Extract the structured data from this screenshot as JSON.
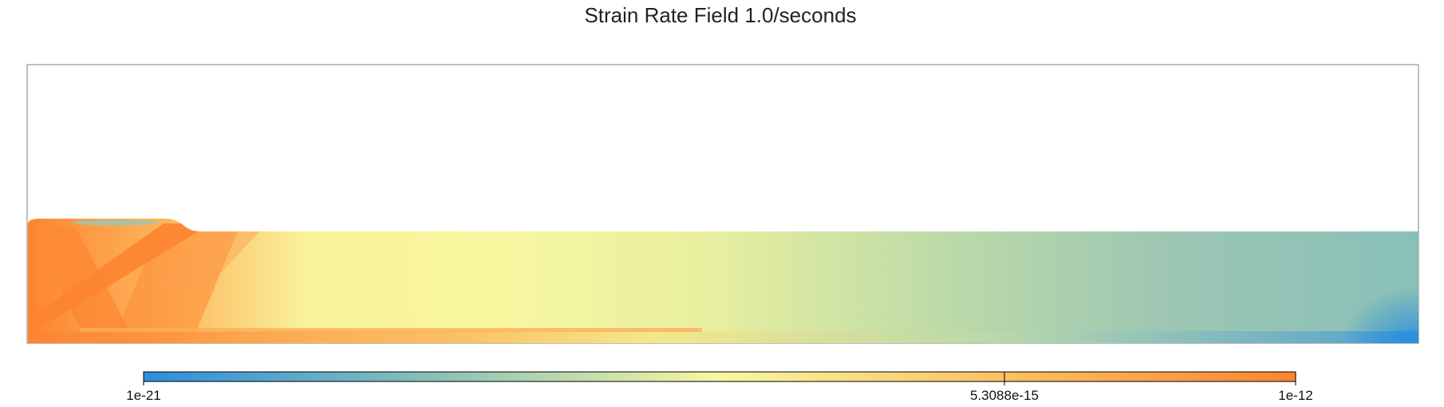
{
  "chart_data": {
    "type": "heatmap",
    "title": "Strain Rate Field 1.0/seconds",
    "xlabel": "",
    "ylabel": "",
    "grid": false,
    "colorbar": {
      "placement": "bottom",
      "scale": "log",
      "range": [
        1e-21,
        1e-12
      ],
      "ticks": [
        {
          "value": 1e-21,
          "label": "1e-21"
        },
        {
          "value": 5.3088e-15,
          "label": "5.3088e-15"
        },
        {
          "value": 1e-12,
          "label": "1e-12"
        }
      ],
      "colormap": [
        {
          "at": 0.0,
          "color": "#2b8fdd"
        },
        {
          "at": 0.25,
          "color": "#88c0b8"
        },
        {
          "at": 0.5,
          "color": "#f8f7a0"
        },
        {
          "at": 0.75,
          "color": "#fbc060"
        },
        {
          "at": 1.0,
          "color": "#fd8430"
        }
      ]
    },
    "field": {
      "description_colors": {
        "frame": "#aaaaaa",
        "background": "#ffffff"
      }
    }
  }
}
